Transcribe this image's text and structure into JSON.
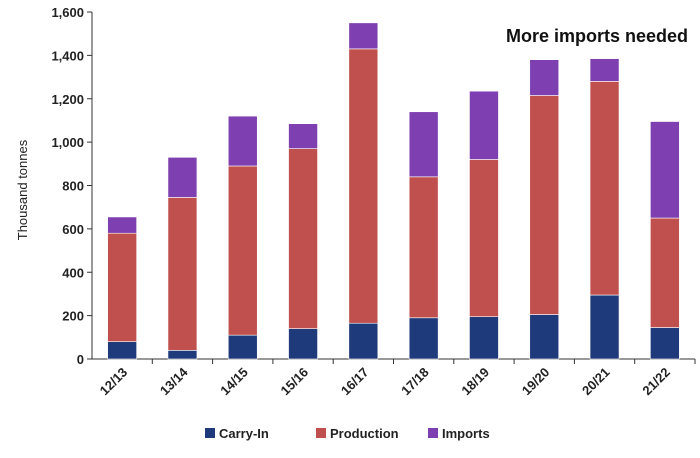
{
  "chart_data": {
    "type": "bar",
    "stacked": true,
    "title": "More imports needed",
    "xlabel": "",
    "ylabel": "Thousand tonnes",
    "ylim": [
      0,
      1600
    ],
    "yticks": [
      0,
      200,
      400,
      600,
      800,
      1000,
      1200,
      1400,
      1600
    ],
    "ytick_labels": [
      "0",
      "200",
      "400",
      "600",
      "800",
      "1,000",
      "1,200",
      "1,400",
      "1,600"
    ],
    "grid": false,
    "legend_position": "bottom",
    "categories": [
      "12/13",
      "13/14",
      "14/15",
      "15/16",
      "16/17",
      "17/18",
      "18/19",
      "19/20",
      "20/21",
      "21/22"
    ],
    "series": [
      {
        "name": "Carry-In",
        "color": "#1f3a7a",
        "values": [
          80,
          40,
          110,
          140,
          165,
          190,
          195,
          205,
          295,
          145
        ]
      },
      {
        "name": "Production",
        "color": "#c0504d",
        "values": [
          500,
          705,
          780,
          830,
          1265,
          650,
          725,
          1010,
          985,
          505
        ]
      },
      {
        "name": "Imports",
        "color": "#7e3fb0",
        "values": [
          75,
          185,
          230,
          115,
          120,
          300,
          315,
          165,
          105,
          445
        ]
      }
    ]
  }
}
